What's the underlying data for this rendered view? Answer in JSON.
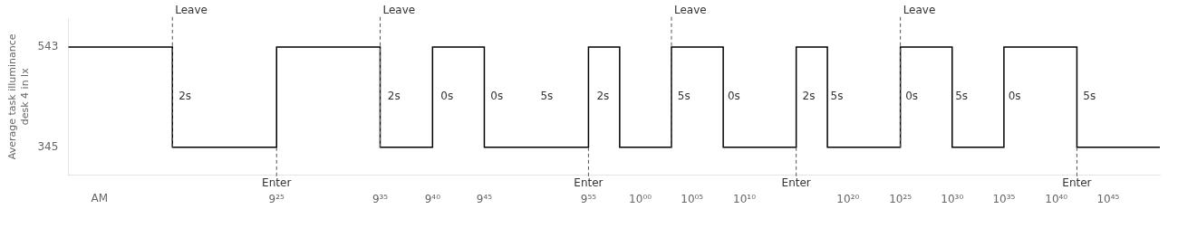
{
  "chart_data": {
    "type": "line",
    "y_label": "Average task illuminance\ndesk 4 in lx",
    "x": [
      9.083,
      9.25,
      9.25,
      9.417,
      9.417,
      9.583,
      9.583,
      9.667,
      9.667,
      9.75,
      9.75,
      9.917,
      9.917,
      9.967,
      9.967,
      10.05,
      10.05,
      10.133,
      10.133,
      10.25,
      10.25,
      10.3,
      10.3,
      10.417,
      10.417,
      10.5,
      10.5,
      10.583,
      10.583,
      10.7,
      10.7,
      10.833
    ],
    "values": [
      543,
      543,
      345,
      345,
      543,
      543,
      345,
      345,
      543,
      543,
      345,
      345,
      543,
      543,
      345,
      345,
      543,
      543,
      345,
      345,
      543,
      543,
      345,
      345,
      543,
      543,
      345,
      345,
      543,
      543,
      345,
      345
    ],
    "color": "#000000",
    "xlim": [
      9.083,
      10.833
    ],
    "xticks": [
      {
        "value": 9.25,
        "label": null
      },
      {
        "value": 9.417,
        "label": "9²⁵"
      },
      {
        "value": 9.583,
        "label": "9³⁵"
      },
      {
        "value": 9.667,
        "label": "9⁴⁰"
      },
      {
        "value": 9.75,
        "label": "9⁴⁵"
      },
      {
        "value": 9.917,
        "label": "9⁵⁵"
      },
      {
        "value": 10.0,
        "label": "10⁰⁰"
      },
      {
        "value": 10.083,
        "label": "10⁰⁵"
      },
      {
        "value": 10.167,
        "label": "10¹⁰"
      },
      {
        "value": 10.333,
        "label": "10²⁰"
      },
      {
        "value": 10.417,
        "label": "10²⁵"
      },
      {
        "value": 10.5,
        "label": "10³⁰"
      },
      {
        "value": 10.583,
        "label": "10³⁵"
      },
      {
        "value": 10.667,
        "label": "10⁴⁰"
      },
      {
        "value": 10.75,
        "label": "10⁴⁵"
      }
    ],
    "ylim": [
      290,
      600
    ],
    "yticks": [
      345,
      543
    ],
    "grid": false,
    "x_axis_note": {
      "text": "AM",
      "x": 9.133
    },
    "leave_events": {
      "label": "Leave",
      "x": [
        9.25,
        9.583,
        10.05,
        10.417
      ]
    },
    "enter_events": {
      "label": "Enter",
      "x": [
        9.417,
        9.917,
        10.25,
        10.7
      ]
    },
    "annotations": [
      {
        "text": "2s",
        "x": 9.26,
        "y": 444
      },
      {
        "text": "2s",
        "x": 9.595,
        "y": 444
      },
      {
        "text": "0s",
        "x": 9.68,
        "y": 444
      },
      {
        "text": "0s",
        "x": 9.76,
        "y": 444
      },
      {
        "text": "5s",
        "x": 9.84,
        "y": 444
      },
      {
        "text": "2s",
        "x": 9.93,
        "y": 444
      },
      {
        "text": "5s",
        "x": 10.06,
        "y": 444
      },
      {
        "text": "0s",
        "x": 10.14,
        "y": 444
      },
      {
        "text": "2s",
        "x": 10.26,
        "y": 444
      },
      {
        "text": "5s",
        "x": 10.305,
        "y": 444
      },
      {
        "text": "0s",
        "x": 10.425,
        "y": 444
      },
      {
        "text": "5s",
        "x": 10.505,
        "y": 444
      },
      {
        "text": "0s",
        "x": 10.59,
        "y": 444
      },
      {
        "text": "5s",
        "x": 10.71,
        "y": 444
      }
    ]
  }
}
